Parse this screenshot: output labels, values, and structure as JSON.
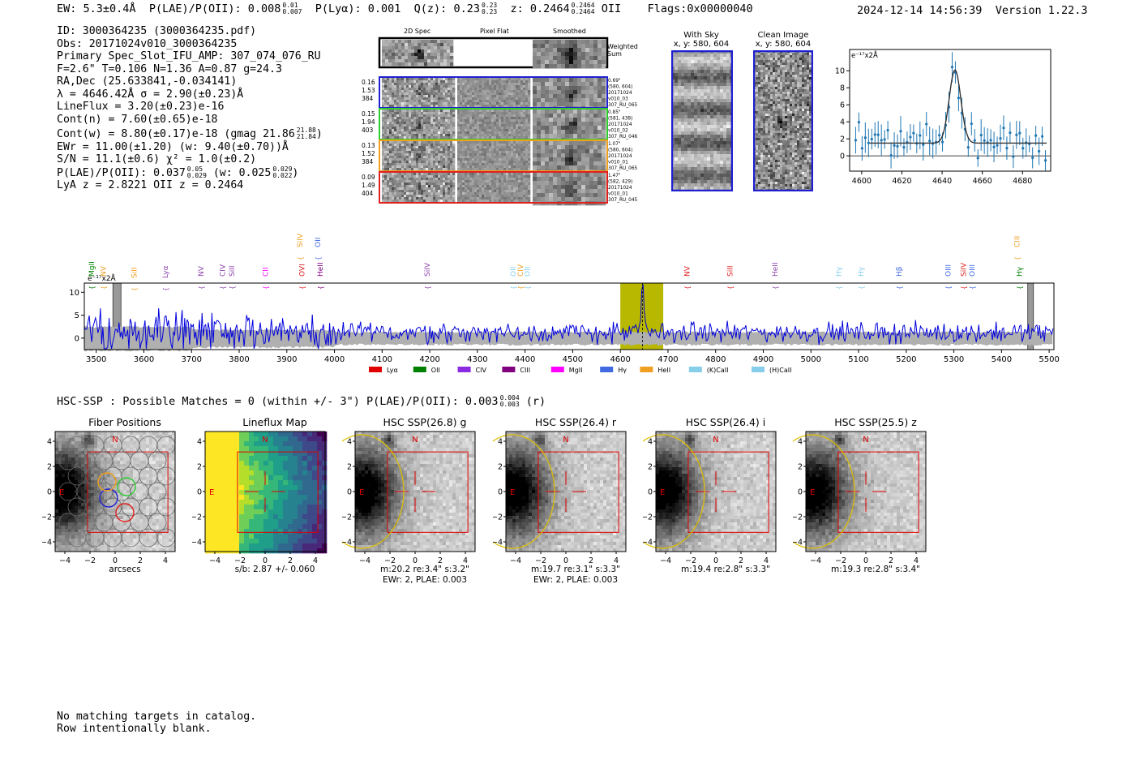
{
  "header": {
    "ew": "EW: 5.3±0.4Å",
    "plae_label": "P(LAE)/P(OII): 0.008",
    "plae_hi": "0.01",
    "plae_lo": "0.007",
    "plya": "P(Lyα): 0.001",
    "qz": "Q(z): 0.23",
    "qz_hi": "0.23",
    "qz_lo": "0.23",
    "z": "z: 0.2464",
    "z_hi": "0.2464",
    "z_lo": "0.2464",
    "z_line": "OII",
    "flags": "Flags:0x00000040",
    "timestamp": "2024-12-14 14:56:39",
    "version": "Version 1.22.3"
  },
  "info": {
    "id": "ID: 3000364235 (3000364235.pdf)",
    "obs": "Obs: 20171024v010_3000364235",
    "primary": "Primary Spec_Slot_IFU_AMP: 307_074_076_RU",
    "fwhm": "F=2.6\"  T=0.106  N=1.36  A=0.87  g=24.3",
    "radec": "RA,Dec (25.633841,-0.034141)",
    "lambda": "λ = 4646.42Å  σ = 2.90(±0.23)Å",
    "lineflux": "LineFlux = 3.20(±0.23)e-16",
    "contn": "Cont(n) = 7.60(±0.65)e-18",
    "contw": "Cont(w) = 8.80(±0.17)e-18 (gmag 21.86",
    "gmag_hi": "21.88",
    "gmag_lo": "21.84",
    "contw_close": ")",
    "ewr": "EWr = 11.00(±1.20) (w: 9.40(±0.70))Å",
    "sn": "S/N = 11.1(±0.6)  χ² = 1.0(±0.2)",
    "plae": "P(LAE)/P(OII): 0.037",
    "plae_hi": "0.05",
    "plae_lo": "0.029",
    "plae_w": "(w: 0.025",
    "plae_w_hi": "0.029",
    "plae_w_lo": "0.022",
    "plae_close": ")",
    "lyaz": "LyA z = 2.8221  OII z = 0.2464"
  },
  "cutouts": {
    "col_titles": [
      "2D Spec",
      "Pixel Flat",
      "Smoothed"
    ],
    "weighted_label": "Weighted Sum",
    "rows": [
      {
        "left": [
          "0.16",
          "1.53",
          "384"
        ],
        "right": [
          "0.69\"",
          "(580, 604)",
          "20171024",
          "v010_03",
          "307_RU_065"
        ],
        "color": "#1f1fd0"
      },
      {
        "left": [
          "0.15",
          "1.94",
          "403"
        ],
        "right": [
          "0.85\"",
          "(581, 438)",
          "20171024",
          "v010_02",
          "307_RU_046"
        ],
        "color": "#2ecc2e"
      },
      {
        "left": [
          "0.13",
          "1.52",
          "384"
        ],
        "right": [
          "1.07\"",
          "(580, 604)",
          "20171024",
          "v010_01",
          "307_RU_065"
        ],
        "color": "#f0a020"
      },
      {
        "left": [
          "0.09",
          "1.49",
          "404"
        ],
        "right": [
          "1.47\"",
          "(582, 429)",
          "20171024",
          "v010_01",
          "307_RU_045"
        ],
        "color": "#e02020"
      }
    ]
  },
  "sky": {
    "with_sky_title": "With Sky",
    "with_sky_xy": "x, y: 580, 604",
    "clean_title": "Clean Image",
    "clean_xy": "x, y: 580, 604"
  },
  "zoom_chart": {
    "type": "scatter",
    "unit_label": "e⁻¹⁷x2Å",
    "xlim": [
      4594,
      4694
    ],
    "ylim": [
      -1.8,
      12.5
    ],
    "xticks": [
      4600,
      4620,
      4640,
      4660,
      4680
    ],
    "yticks": [
      0,
      2,
      4,
      6,
      8,
      10
    ],
    "continuum": 1.5,
    "line_center": 4646.4,
    "line_sigma": 2.9,
    "line_peak": 8.6
  },
  "chart_data": {
    "type": "line",
    "title": "",
    "unit_label": "e⁻¹⁷x2Å",
    "xlim": [
      3475,
      5510
    ],
    "ylim": [
      -2.5,
      12
    ],
    "xticks": [
      3500,
      3600,
      3700,
      3800,
      3900,
      4000,
      4100,
      4200,
      4300,
      4400,
      4500,
      4600,
      4700,
      4800,
      4900,
      5000,
      5100,
      5200,
      5300,
      5400,
      5500
    ],
    "yticks": [
      0,
      5,
      10
    ],
    "highlight_range": [
      4600,
      4690
    ],
    "highlight_color": "#b8b800",
    "detected_line": 4646.4,
    "masked_ranges": [
      [
        3535,
        3552
      ],
      [
        5455,
        5467
      ]
    ],
    "emission_line": {
      "center": 4646.4,
      "sigma": 2.9,
      "peak": 10.5
    },
    "line_markers": [
      {
        "label": "MgII",
        "wave": 3490,
        "color": "#008000",
        "row": 1
      },
      {
        "label": "NV",
        "wave": 3515,
        "color": "#f0a020",
        "row": 1
      },
      {
        "label": "SiII",
        "wave": 3580,
        "color": "#f0a020",
        "row": 2
      },
      {
        "label": "Lyα",
        "wave": 3645,
        "color": "#8e44ad",
        "row": 2
      },
      {
        "label": "NV",
        "wave": 3720,
        "color": "#8e44ad",
        "row": 1
      },
      {
        "label": "CIV",
        "wave": 3765,
        "color": "#8e44ad",
        "row": 1
      },
      {
        "label": "SiII",
        "wave": 3785,
        "color": "#8e44ad",
        "row": 1
      },
      {
        "label": "CII",
        "wave": 3855,
        "color": "#ff00ff",
        "row": 1
      },
      {
        "label": "SiIV",
        "wave": 3928,
        "color": "#f0a020",
        "row": 0
      },
      {
        "label": "OVI",
        "wave": 3932,
        "color": "#e02020",
        "row": 1
      },
      {
        "label": "OII",
        "wave": 3965,
        "color": "#4169e1",
        "row": 0
      },
      {
        "label": "HeII",
        "wave": 3970,
        "color": "#800080",
        "row": 1
      },
      {
        "label": "SiIV",
        "wave": 4195,
        "color": "#8e44ad",
        "row": 1
      },
      {
        "label": "OII",
        "wave": 4375,
        "color": "#87ceeb",
        "row": 1
      },
      {
        "label": "CIV",
        "wave": 4390,
        "color": "#f0a020",
        "row": 1
      },
      {
        "label": "OII",
        "wave": 4405,
        "color": "#87ceeb",
        "row": 1
      },
      {
        "label": "NV",
        "wave": 4740,
        "color": "#e02020",
        "row": 1
      },
      {
        "label": "SiII",
        "wave": 4830,
        "color": "#e02020",
        "row": 1
      },
      {
        "label": "HeII",
        "wave": 4925,
        "color": "#8e44ad",
        "row": 1
      },
      {
        "label": "Hγ",
        "wave": 5058,
        "color": "#87ceeb",
        "row": 1
      },
      {
        "label": "Hγ",
        "wave": 5105,
        "color": "#87ceeb",
        "row": 1
      },
      {
        "label": "Hβ",
        "wave": 5185,
        "color": "#4169e1",
        "row": 1
      },
      {
        "label": "OIII",
        "wave": 5288,
        "color": "#4169e1",
        "row": 1
      },
      {
        "label": "SiIV",
        "wave": 5320,
        "color": "#e02020",
        "row": 1
      },
      {
        "label": "OIII",
        "wave": 5338,
        "color": "#4169e1",
        "row": 1
      },
      {
        "label": "CIII",
        "wave": 5433,
        "color": "#f0a020",
        "row": 0
      },
      {
        "label": "Hγ",
        "wave": 5438,
        "color": "#008000",
        "row": 1
      }
    ],
    "legend": [
      {
        "label": "Lyα",
        "color": "#e00000"
      },
      {
        "label": "OII",
        "color": "#008000"
      },
      {
        "label": "CIV",
        "color": "#8a2be2"
      },
      {
        "label": "CIII",
        "color": "#800080"
      },
      {
        "label": "MgII",
        "color": "#ff00ff"
      },
      {
        "label": "Hγ",
        "color": "#4169e1"
      },
      {
        "label": "HeII",
        "color": "#f0a020"
      },
      {
        "label": "(K)CaII",
        "color": "#87ceeb"
      },
      {
        "label": "(H)CaII",
        "color": "#87ceeb"
      }
    ]
  },
  "hsc": {
    "line": "HSC-SSP : Possible Matches = 0 (within +/- 3\")  P(LAE)/P(OII): 0.003",
    "hi": "0.004",
    "lo": "0.003",
    "band": "(r)"
  },
  "panels": [
    {
      "title": "Fiber Positions",
      "caption1": "arcsecs",
      "caption2": "",
      "kind": "fiber"
    },
    {
      "title": "Lineflux Map",
      "caption1": "s/b: 2.87 +/- 0.060",
      "caption2": "",
      "kind": "flux"
    },
    {
      "title": "HSC SSP(26.8) g",
      "caption1": "m:20.2  re:3.4\"  s:3.2\"",
      "caption2": "EWr: 2, PLAE: 0.003",
      "kind": "img"
    },
    {
      "title": "HSC SSP(26.4) r",
      "caption1": "m:19.7  re:3.1\"  s:3.3\"",
      "caption2": "EWr: 2, PLAE: 0.003",
      "kind": "img"
    },
    {
      "title": "HSC SSP(26.4) i",
      "caption1": "m:19.4  re:2.8\"  s:3.3\"",
      "caption2": "",
      "kind": "img"
    },
    {
      "title": "HSC SSP(25.5) z",
      "caption1": "m:19.3  re:2.8\"  s:3.4\"",
      "caption2": "",
      "kind": "img"
    }
  ],
  "panel_axes": {
    "ticks": [
      "−4",
      "−2",
      "0",
      "2",
      "4"
    ],
    "north": "N",
    "east": "E"
  },
  "footer": {
    "line1": "No matching targets in catalog.",
    "line2": "Row intentionally blank."
  }
}
